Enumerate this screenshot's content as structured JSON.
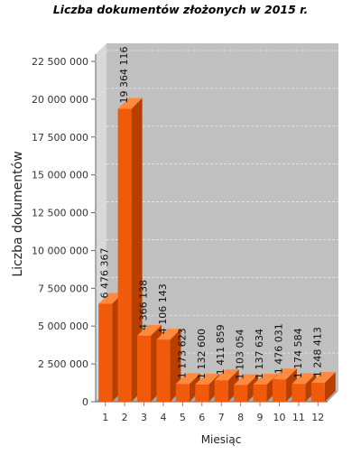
{
  "chart_data": {
    "type": "bar",
    "title": "Liczba dokumentów złożonych w 2015 r.",
    "xlabel": "Miesiąc",
    "ylabel": "Liczba dokumentów",
    "categories": [
      "1",
      "2",
      "3",
      "4",
      "5",
      "6",
      "7",
      "8",
      "9",
      "10",
      "11",
      "12"
    ],
    "values": [
      6476367,
      19364116,
      4366138,
      4106143,
      1173623,
      1132600,
      1411859,
      1103054,
      1137634,
      1476031,
      1174584,
      1248413
    ],
    "value_labels": [
      "6 476 367",
      "19 364 116",
      "4 366 138",
      "4 106 143",
      "1 173 623",
      "1 132 600",
      "1 411 859",
      "1 103 054",
      "1 137 634",
      "1 476 031",
      "1 174 584",
      "1 248 413"
    ],
    "ylim": [
      0,
      22500000
    ],
    "y_ticks": [
      0,
      2500000,
      5000000,
      7500000,
      10000000,
      12500000,
      15000000,
      17500000,
      20000000,
      22500000
    ],
    "y_tick_labels": [
      "0",
      "2 500 000",
      "5 000 000",
      "7 500 000",
      "10 000 000",
      "12 500 000",
      "15 000 000",
      "17 500 000",
      "20 000 000",
      "22 500 000"
    ],
    "grid": true,
    "style": "3d-bar",
    "colors": {
      "bar_front": "#f05a0a",
      "bar_top": "#ff8a3d",
      "bar_side": "#b93f00",
      "plot_back": "#c0c0c0",
      "plot_left_wall": "#d8d8d8",
      "plot_floor": "#a8a8a8",
      "grid": "#e8e8e8"
    }
  }
}
